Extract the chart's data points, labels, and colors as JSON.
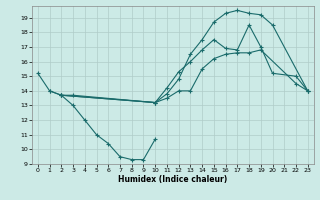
{
  "bg_color": "#cceae6",
  "grid_color": "#b0ccc9",
  "line_color": "#1a6b6b",
  "xlabel": "Humidex (Indice chaleur)",
  "xlim": [
    -0.5,
    23.5
  ],
  "ylim": [
    9,
    19.8
  ],
  "yticks": [
    9,
    10,
    11,
    12,
    13,
    14,
    15,
    16,
    17,
    18,
    19
  ],
  "xticks": [
    0,
    1,
    2,
    3,
    4,
    5,
    6,
    7,
    8,
    9,
    10,
    11,
    12,
    13,
    14,
    15,
    16,
    17,
    18,
    19,
    20,
    21,
    22,
    23
  ],
  "series": [
    {
      "x": [
        0,
        1,
        2,
        3,
        10,
        11,
        12,
        13,
        14,
        15,
        16,
        17,
        18,
        19,
        22,
        23
      ],
      "y": [
        15.2,
        14.0,
        13.7,
        13.7,
        13.2,
        13.5,
        14.0,
        14.0,
        15.5,
        16.2,
        16.5,
        16.6,
        16.6,
        16.8,
        14.5,
        14.0
      ]
    },
    {
      "x": [
        2,
        3,
        4,
        5,
        6,
        7,
        8,
        9,
        10
      ],
      "y": [
        13.7,
        13.0,
        12.0,
        11.0,
        10.4,
        9.5,
        9.3,
        9.3,
        10.7
      ]
    },
    {
      "x": [
        1,
        2,
        10,
        11,
        12,
        13,
        14,
        15,
        16,
        17,
        18,
        19,
        20,
        23
      ],
      "y": [
        14.0,
        13.7,
        13.2,
        13.8,
        14.8,
        16.5,
        17.5,
        18.7,
        19.3,
        19.5,
        19.3,
        19.2,
        18.5,
        14.0
      ]
    },
    {
      "x": [
        2,
        10,
        11,
        12,
        13,
        14,
        15,
        16,
        17,
        18,
        19,
        20,
        22,
        23
      ],
      "y": [
        13.7,
        13.2,
        14.2,
        15.3,
        16.0,
        16.8,
        17.5,
        16.9,
        16.8,
        18.5,
        17.0,
        15.2,
        15.0,
        14.0
      ]
    }
  ]
}
